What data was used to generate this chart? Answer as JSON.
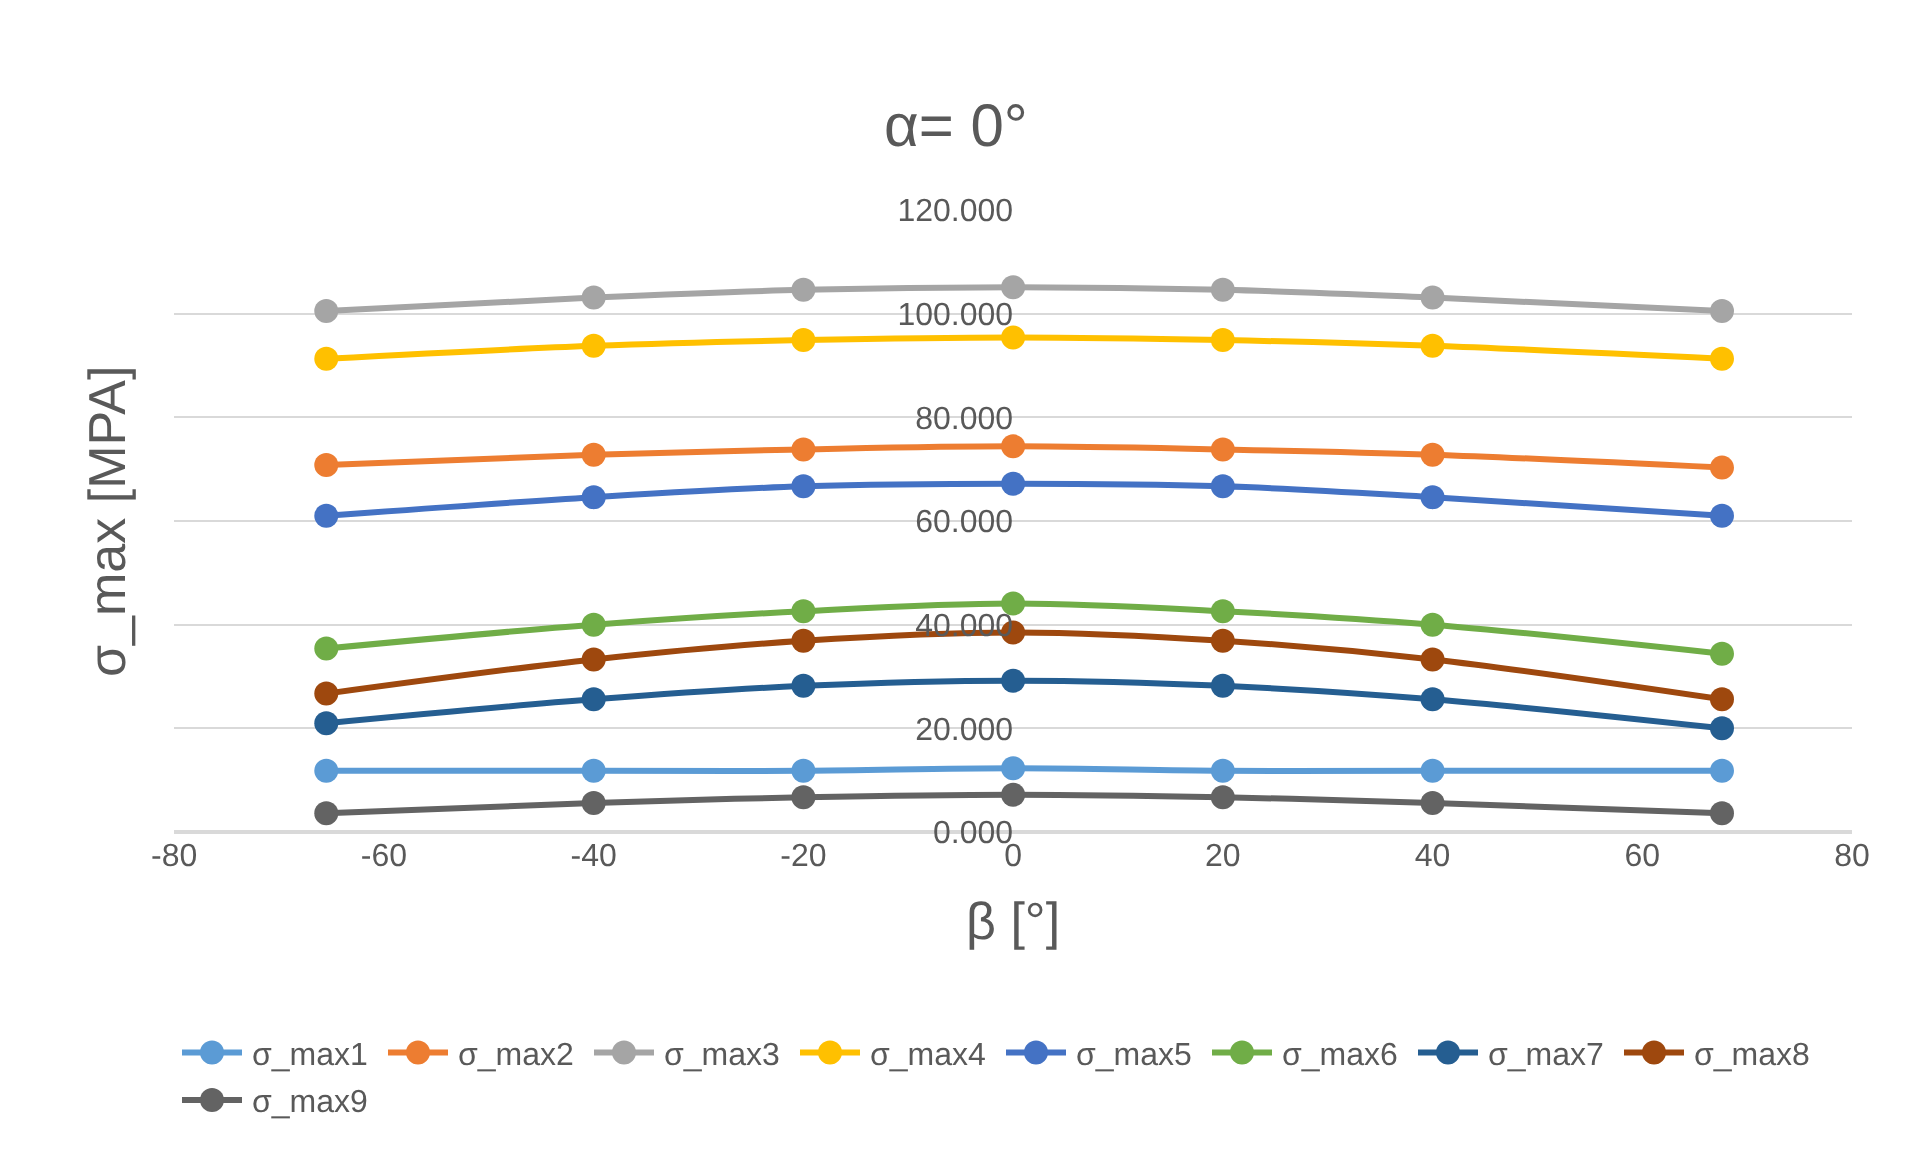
{
  "chart_data": {
    "type": "line",
    "title": "α= 0°",
    "xlabel": "β [°]",
    "ylabel": "σ_max [MPA]",
    "x": [
      -65.5,
      -40,
      -20,
      0,
      20,
      40,
      67.6
    ],
    "series": [
      {
        "name": "σ_max1",
        "color": "#5b9bd5",
        "values": [
          11.8,
          11.8,
          11.8,
          12.3,
          11.8,
          11.8,
          11.8
        ]
      },
      {
        "name": "σ_max2",
        "color": "#ed7d31",
        "values": [
          70.8,
          72.8,
          73.8,
          74.4,
          73.8,
          72.8,
          70.3
        ]
      },
      {
        "name": "σ_max3",
        "color": "#a5a5a5",
        "values": [
          100.5,
          103.1,
          104.6,
          105.1,
          104.6,
          103.1,
          100.5
        ]
      },
      {
        "name": "σ_max4",
        "color": "#ffc000",
        "values": [
          91.3,
          93.8,
          94.9,
          95.4,
          94.9,
          93.8,
          91.3
        ]
      },
      {
        "name": "σ_max5",
        "color": "#4472c4",
        "values": [
          61.0,
          64.6,
          66.7,
          67.2,
          66.7,
          64.6,
          61.0
        ]
      },
      {
        "name": "σ_max6",
        "color": "#70ad47",
        "values": [
          35.4,
          40.0,
          42.6,
          44.1,
          42.6,
          40.0,
          34.4
        ]
      },
      {
        "name": "σ_max7",
        "color": "#255e91",
        "values": [
          21.0,
          25.6,
          28.2,
          29.2,
          28.2,
          25.6,
          20.0
        ]
      },
      {
        "name": "σ_max8",
        "color": "#9e480e",
        "values": [
          26.7,
          33.3,
          36.9,
          38.5,
          36.9,
          33.3,
          25.6
        ]
      },
      {
        "name": "σ_max9",
        "color": "#636363",
        "values": [
          3.6,
          5.6,
          6.7,
          7.2,
          6.7,
          5.6,
          3.6
        ]
      }
    ],
    "xlim": [
      -80,
      80
    ],
    "xticks": [
      -80,
      -60,
      -40,
      -20,
      0,
      20,
      40,
      60,
      80
    ],
    "ylim": [
      0,
      120
    ],
    "yticks": [
      {
        "value": 0,
        "label": "0.000"
      },
      {
        "value": 20,
        "label": "20.000"
      },
      {
        "value": 40,
        "label": "40.000"
      },
      {
        "value": 60,
        "label": "60.000"
      },
      {
        "value": 80,
        "label": "80.000"
      },
      {
        "value": 100,
        "label": "100.000"
      },
      {
        "value": 120,
        "label": "120.000"
      }
    ],
    "grid": "y",
    "legend": "bottom",
    "marker": "circle",
    "line_style": "solid"
  }
}
